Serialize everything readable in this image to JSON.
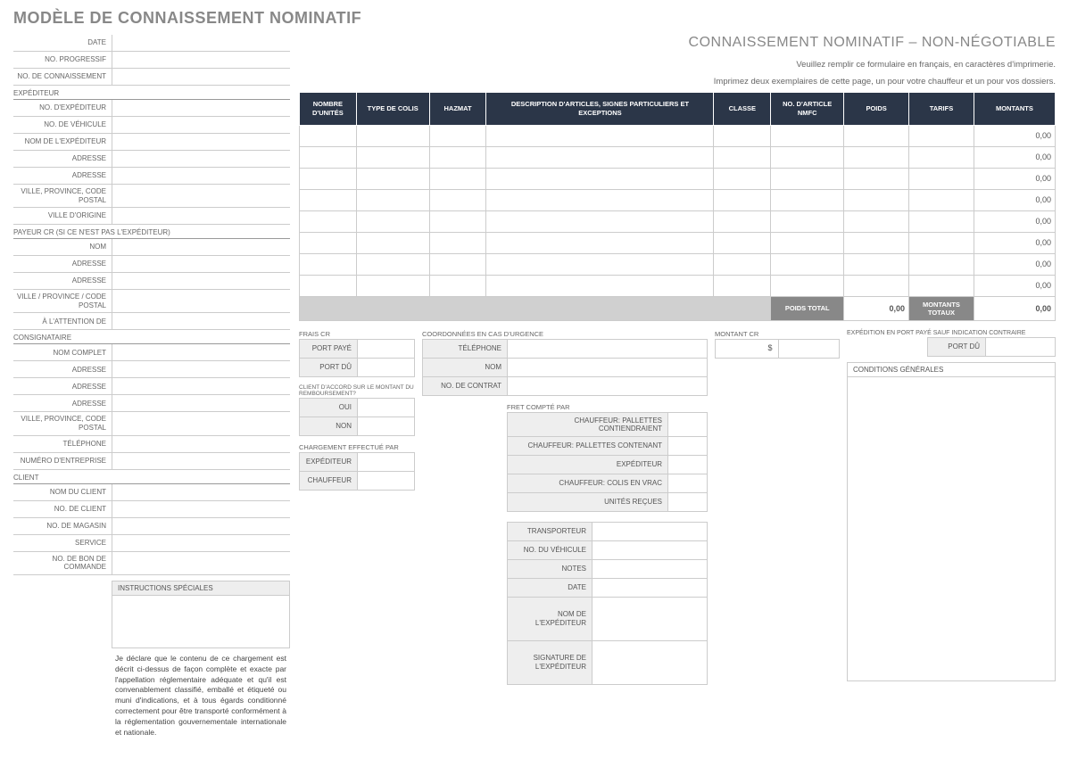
{
  "title": "MODÈLE DE CONNAISSEMENT NOMINATIF",
  "subtitle": "CONNAISSEMENT NOMINATIF – NON-NÉGOTIABLE",
  "instruction1": "Veuillez remplir ce formulaire en français, en caractères d'imprimerie.",
  "instruction2": "Imprimez deux exemplaires de cette page, un pour votre chauffeur et un pour vos dossiers.",
  "left": {
    "date": "DATE",
    "progressif": "NO. PROGRESSIF",
    "connaissement": "NO. DE CONNAISSEMENT",
    "sec_expediteur": "EXPÉDITEUR",
    "no_expediteur": "NO. D'EXPÉDITEUR",
    "no_vehicule": "NO. DE VÉHICULE",
    "nom_expediteur": "NOM DE L'EXPÉDITEUR",
    "adresse": "ADRESSE",
    "ville_prov_cp": "VILLE, PROVINCE, CODE POSTAL",
    "ville_origine": "VILLE D'ORIGINE",
    "sec_payeur": "PAYEUR CR (si ce n'est pas l'expéditeur)",
    "nom": "NOM",
    "ville_prov_cp2": "VILLE / PROVINCE / CODE POSTAL",
    "attention": "À L'ATTENTION DE",
    "sec_consignataire": "CONSIGNATAIRE",
    "nom_complet": "NOM COMPLET",
    "telephone": "TÉLÉPHONE",
    "numero_entreprise": "NUMÉRO D'ENTREPRISE",
    "sec_client": "CLIENT",
    "nom_client": "NOM DU CLIENT",
    "no_client": "NO. DE CLIENT",
    "no_magasin": "NO. DE MAGASIN",
    "service": "SERVICE",
    "no_bon": "NO. DE BON DE COMMANDE",
    "instr_speciales": "INSTRUCTIONS SPÉCIALES"
  },
  "declaration": "Je déclare que le contenu de ce chargement est décrit ci-dessus de façon complète et exacte par l'appellation réglementaire adéquate et qu'il est convenablement classifié, emballé et étiqueté ou muni d'indications, et à tous égards conditionné correctement pour être transporté conformément à la réglementation gouvernementale internationale et nationale.",
  "table": {
    "headers": [
      "NOMBRE D'UNITÉS",
      "TYPE DE COLIS",
      "HAZMAT",
      "DESCRIPTION D'ARTICLES, SIGNES PARTICULIERS ET EXCEPTIONS",
      "CLASSE",
      "NO. D'ARTICLE NMFC",
      "POIDS",
      "TARIFS",
      "MONTANTS"
    ],
    "zero": "0,00",
    "poids_total_lbl": "POIDS TOTAL",
    "poids_total_val": "0,00",
    "montants_totaux_lbl": "MONTANTS TOTAUX",
    "montants_totaux_val": "0,00"
  },
  "mid": {
    "frais_cr": "FRAIS CR",
    "port_paye": "PORT PAYÉ",
    "port_du": "PORT DÛ",
    "accord": "CLIENT D'ACCORD SUR LE MONTANT DU REMBOURSEMENT?",
    "oui": "OUI",
    "non": "NON",
    "chargement": "CHARGEMENT EFFECTUÉ PAR",
    "expediteur": "EXPÉDITEUR",
    "chauffeur": "CHAUFFEUR",
    "coord": "COORDONNÉES EN CAS D'URGENCE",
    "telephone": "TÉLÉPHONE",
    "nom": "NOM",
    "no_contrat": "NO. DE CONTRAT",
    "fret": "FRET COMPTÉ PAR",
    "fret1": "CHAUFFEUR: PALLETTES CONTIENDRAIENT",
    "fret2": "CHAUFFEUR: PALLETTES CONTENANT",
    "fret3": "EXPÉDITEUR",
    "fret4": "CHAUFFEUR: COLIS EN VRAC",
    "fret5": "UNITÉS REÇUES",
    "montant_cr": "MONTANT CR",
    "dollar": "$",
    "exped_port": "EXPÉDITION EN PORT PAYÉ SAUF INDICATION CONTRAIRE",
    "port_du2": "PORT DÛ",
    "conditions": "CONDITIONS GÉNÉRALES"
  },
  "sig": {
    "transporteur": "TRANSPORTEUR",
    "no_vehicule": "NO. DU VÉHICULE",
    "notes": "NOTES",
    "date": "DATE",
    "nom_exp": "NOM DE L'EXPÉDITEUR",
    "sig_exp": "SIGNATURE DE L'EXPÉDITEUR"
  }
}
